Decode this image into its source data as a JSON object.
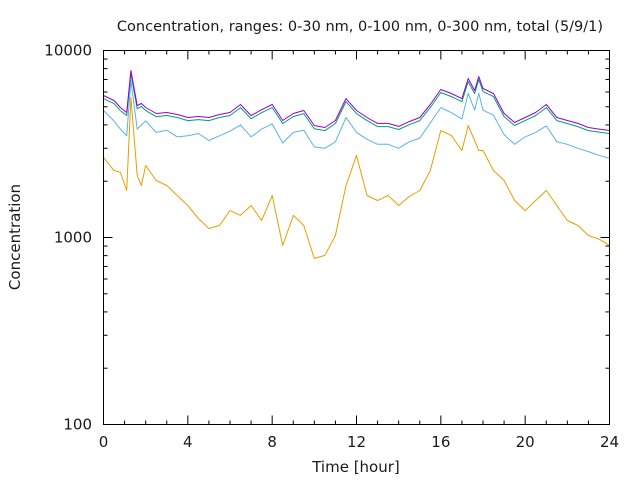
{
  "chart_data": {
    "type": "line",
    "title": "Concentration, ranges: 0-30 nm, 0-100 nm, 0-300 nm, total (5/9/1)",
    "xlabel": "Time [hour]",
    "ylabel": "Concentration",
    "xlim": [
      0,
      24
    ],
    "ylim": [
      100,
      10000
    ],
    "yscale": "log",
    "grid": false,
    "legend": "none",
    "x_ticks": [
      "0",
      "4",
      "8",
      "12",
      "16",
      "20",
      "24"
    ],
    "y_ticks": [
      "100",
      "1000",
      "10000"
    ],
    "x": [
      0,
      0.5,
      0.8,
      1.1,
      1.3,
      1.6,
      1.8,
      2.0,
      2.5,
      3.0,
      3.5,
      4.0,
      4.5,
      5.0,
      5.5,
      6.0,
      6.5,
      7.0,
      7.5,
      8.0,
      8.5,
      9.0,
      9.5,
      10.0,
      10.5,
      11.0,
      11.5,
      12.0,
      12.5,
      13.0,
      13.5,
      14.0,
      14.5,
      15.0,
      15.5,
      16.0,
      16.5,
      17.0,
      17.3,
      17.6,
      17.8,
      18.0,
      18.5,
      19.0,
      19.5,
      20.0,
      20.5,
      21.0,
      21.5,
      22.0,
      22.5,
      23.0,
      23.5,
      24.0
    ],
    "series": [
      {
        "name": "total",
        "color": "#9400d3",
        "values": [
          5746,
          5404,
          4955,
          4661,
          7818,
          5080,
          5210,
          4955,
          4601,
          4661,
          4548,
          4383,
          4436,
          4383,
          4548,
          4661,
          5142,
          4488,
          4827,
          5142,
          4225,
          4601,
          4774,
          3971,
          3873,
          4225,
          5534,
          4774,
          4383,
          4073,
          4073,
          3926,
          4169,
          4383,
          5142,
          6186,
          5890,
          5534,
          7080,
          6109,
          7262,
          6266,
          5890,
          4601,
          4121,
          4383,
          4661,
          5142,
          4383,
          4225,
          4073,
          3873,
          3800,
          3733
        ]
      },
      {
        "name": "0-300 nm",
        "color": "#009e73",
        "values": [
          5530,
          5200,
          4770,
          4490,
          7530,
          4890,
          5020,
          4770,
          4430,
          4490,
          4380,
          4220,
          4270,
          4220,
          4380,
          4490,
          4950,
          4320,
          4650,
          4950,
          4070,
          4430,
          4600,
          3820,
          3730,
          4070,
          5330,
          4600,
          4220,
          3920,
          3920,
          3780,
          4010,
          4220,
          4950,
          5960,
          5670,
          5330,
          6820,
          5880,
          6990,
          6030,
          5670,
          4430,
          3970,
          4220,
          4490,
          4950,
          4220,
          4070,
          3920,
          3730,
          3660,
          3600
        ]
      },
      {
        "name": "0-100 nm",
        "color": "#56b4e9",
        "values": [
          4780,
          4200,
          3800,
          3500,
          6900,
          3800,
          4000,
          4200,
          3650,
          3750,
          3450,
          3500,
          3600,
          3300,
          3500,
          3700,
          4000,
          3450,
          3800,
          4050,
          3200,
          3650,
          3750,
          3050,
          3000,
          3250,
          4380,
          3650,
          3350,
          3150,
          3150,
          3000,
          3250,
          3400,
          4100,
          4950,
          4650,
          4300,
          5900,
          4800,
          5900,
          4800,
          4500,
          3550,
          3150,
          3450,
          3650,
          3950,
          3250,
          3150,
          3000,
          2880,
          2750,
          2650
        ]
      },
      {
        "name": "0-30 nm",
        "color": "#e69f00",
        "values": [
          2680,
          2281,
          2229,
          1783,
          5610,
          2148,
          1897,
          2427,
          2017,
          1897,
          1678,
          1483,
          1264,
          1117,
          1159,
          1393,
          1312,
          1483,
          1233,
          1678,
          906,
          1312,
          1159,
          773,
          802,
          1025,
          1897,
          2747,
          1678,
          1578,
          1678,
          1483,
          1656,
          1783,
          2281,
          3733,
          3508,
          2918,
          3971,
          3304,
          2918,
          2918,
          2281,
          2017,
          1578,
          1393,
          1578,
          1783,
          1483,
          1233,
          1159,
          1025,
          980,
          906
        ]
      }
    ]
  }
}
